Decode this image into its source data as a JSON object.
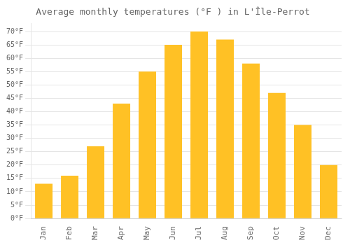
{
  "chart_data": {
    "type": "bar",
    "title": "Average monthly temperatures (°F ) in L'Île-Perrot",
    "categories": [
      "Jan",
      "Feb",
      "Mar",
      "Apr",
      "May",
      "Jun",
      "Jul",
      "Aug",
      "Sep",
      "Oct",
      "Nov",
      "Dec"
    ],
    "values": [
      13,
      16,
      27,
      43,
      55,
      65,
      70,
      67,
      58,
      47,
      35,
      20
    ],
    "color": "#FFC125",
    "ylim": [
      0,
      73
    ],
    "yticks": [
      {
        "value": 0,
        "label": "0°F"
      },
      {
        "value": 5,
        "label": "5°F"
      },
      {
        "value": 10,
        "label": "10°F"
      },
      {
        "value": 15,
        "label": "15°F"
      },
      {
        "value": 20,
        "label": "20°F"
      },
      {
        "value": 25,
        "label": "25°F"
      },
      {
        "value": 30,
        "label": "30°F"
      },
      {
        "value": 35,
        "label": "35°F"
      },
      {
        "value": 40,
        "label": "40°F"
      },
      {
        "value": 45,
        "label": "45°F"
      },
      {
        "value": 50,
        "label": "50°F"
      },
      {
        "value": 55,
        "label": "55°F"
      },
      {
        "value": 60,
        "label": "60°F"
      },
      {
        "value": 65,
        "label": "65°F"
      },
      {
        "value": 70,
        "label": "70°F"
      }
    ],
    "grid": true
  }
}
